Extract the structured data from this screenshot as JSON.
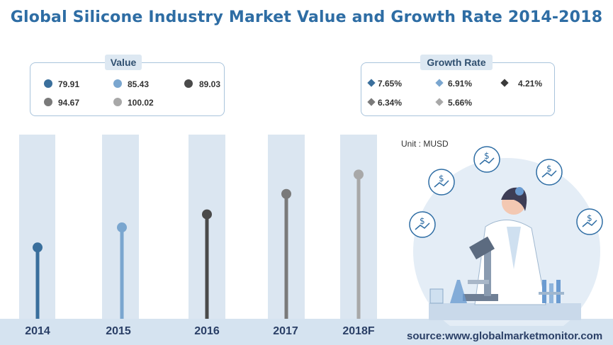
{
  "title": "Global Silicone Industry Market Value and Growth Rate 2014-2018",
  "value_legend": {
    "title": "Value",
    "items": [
      {
        "label": "79.91",
        "color": "#3a6f9c"
      },
      {
        "label": "85.43",
        "color": "#7aa6cf"
      },
      {
        "label": "89.03",
        "color": "#4a4a4a"
      },
      {
        "label": "94.67",
        "color": "#7a7a7a"
      },
      {
        "label": "100.02",
        "color": "#a8a8a8"
      }
    ]
  },
  "growth_legend": {
    "title": "Growth Rate",
    "items": [
      {
        "label": "7.65%",
        "color": "#3a6f9c"
      },
      {
        "label": "6.91%",
        "color": "#7aa6cf"
      },
      {
        "label": "4.21%",
        "color": "#3a3a3a"
      },
      {
        "label": "6.34%",
        "color": "#7a7a7a"
      },
      {
        "label": "5.66%",
        "color": "#a8a8a8"
      }
    ]
  },
  "unit": "Unit : MUSD",
  "source": "source:www.globalmarketmonitor.com",
  "chart_data": {
    "type": "bar",
    "categories": [
      "2014",
      "2015",
      "2016",
      "2017",
      "2018F"
    ],
    "values": [
      79.91,
      85.43,
      89.03,
      94.67,
      100.02
    ],
    "growth_rate": [
      "7.65%",
      "6.91%",
      "4.21%",
      "6.34%",
      "5.66%"
    ],
    "colors": [
      "#3a6f9c",
      "#7aa6cf",
      "#4a4a4a",
      "#7a7a7a",
      "#a8a8a8"
    ],
    "unit": "MUSD",
    "title": "Global Silicone Industry Market Value and Growth Rate 2014-2018"
  }
}
